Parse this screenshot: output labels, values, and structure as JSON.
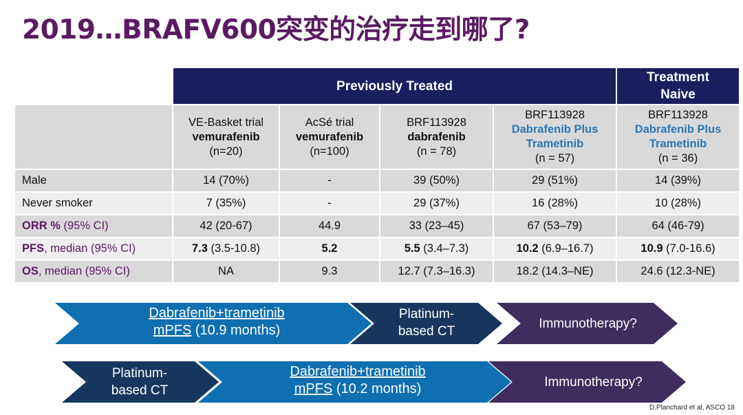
{
  "title": "2019…BRAFV600突变的治疗走到哪了?",
  "header": {
    "group1": "Previously Treated",
    "group2": "Treatment Naive"
  },
  "columns": [
    {
      "line1": "VE-Basket trial",
      "line2": "vemurafenib",
      "line3": "(n=20)"
    },
    {
      "line1": "AcSé trial",
      "line2": "vemurafenib",
      "line3": "(n=100)"
    },
    {
      "line1": "BRF113928",
      "line2": "dabrafenib",
      "line3": "(n = 78)"
    },
    {
      "line1": "BRF113928",
      "line2": "Dabrafenib Plus",
      "line2b": "Trametinib",
      "line3": "(n = 57)"
    },
    {
      "line1": "BRF113928",
      "line2": "Dabrafenib Plus",
      "line2b": "Trametinib",
      "line3": "(n = 36)"
    }
  ],
  "rows": [
    {
      "label": "Male",
      "label_bold": "",
      "label_rest": "Male",
      "cells": [
        "14 (70%)",
        "-",
        "39 (50%)",
        "29 (51%)",
        "14 (39%)"
      ]
    },
    {
      "label": "Never smoker",
      "label_bold": "",
      "label_rest": "Never smoker",
      "cells": [
        "7 (35%)",
        "-",
        "29 (37%)",
        "16 (28%)",
        "10 (28%)"
      ]
    },
    {
      "label_bold": "ORR %",
      "label_rest": " (95% CI)",
      "cells": [
        "42 (20-67)",
        "44.9",
        "33 (23–45)",
        "67 (53–79)",
        "64 (46-79)"
      ]
    },
    {
      "label_bold": "PFS",
      "label_rest": ", median (95% CI)",
      "cells_bold": [
        "7.3",
        "5.2",
        "5.5",
        "10.2",
        "10.9"
      ],
      "cells_rest": [
        " (3.5-10.8)",
        "",
        " (3.4–7.3)",
        " (6.9–16.7)",
        " (7.0-16.6)"
      ]
    },
    {
      "label_bold": "OS",
      "label_rest": ", median (95% CI)",
      "cells": [
        "NA",
        "9.3",
        "12.7 (7.3–16.3)",
        "18.2 (14.3–NE)",
        "24.6 (12.3-NE)"
      ]
    }
  ],
  "flow1": {
    "a_line1": "Dabrafenib+trametinib",
    "a_line2u": "mPFS",
    "a_line2": " (10.9 months)",
    "b_line1": "Platinum-",
    "b_line2": "based CT",
    "c": "Immunotherapy?"
  },
  "flow2": {
    "a_line1": "Platinum-",
    "a_line2": "based CT",
    "b_line1": "Dabrafenib+trametinib",
    "b_line2u": "mPFS",
    "b_line2": " (10.2 months)",
    "c": "Immunotherapy?"
  },
  "colors": {
    "title": "#5b1a63",
    "header": "#1b1f5e",
    "arrow_blue": "#0f6fb0",
    "arrow_navy": "#17375e",
    "arrow_purple": "#3f2d5f",
    "link_blue": "#2e75b6"
  },
  "attribution": "D.Planchard  et al, ASCO 18"
}
